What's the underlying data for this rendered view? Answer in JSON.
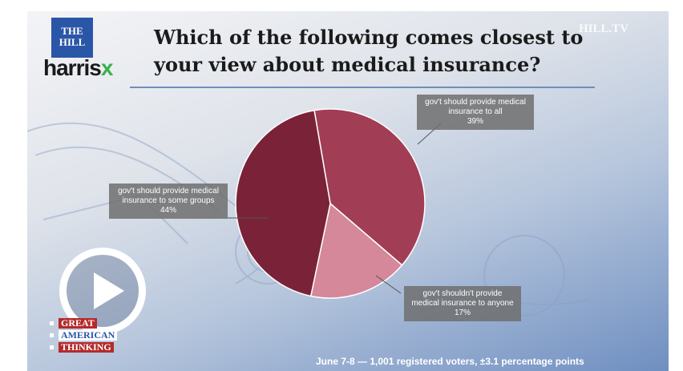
{
  "brand": {
    "logo_top": "THE HILL",
    "logo_main": "harris",
    "logo_x": "x",
    "watermark": "HILL.TV",
    "segment": [
      "GREAT",
      "AMERICAN",
      "THINKING"
    ]
  },
  "chart_data": {
    "type": "pie",
    "title": "Which of the following comes closest to your view about medical insurance?",
    "slices": [
      {
        "label": "gov't should provide medical insurance to all",
        "value": 39,
        "value_label": "39%",
        "color": "#a23d56"
      },
      {
        "label": "gov't shouldn't provide medical insurance to anyone",
        "value": 17,
        "value_label": "17%",
        "color": "#d4889a"
      },
      {
        "label": "gov't should provide medical insurance to some groups",
        "value": 44,
        "value_label": "44%",
        "color": "#7a2338"
      }
    ],
    "footnote": "June 7-8 — 1,001 registered voters, ±3.1 percentage points"
  }
}
